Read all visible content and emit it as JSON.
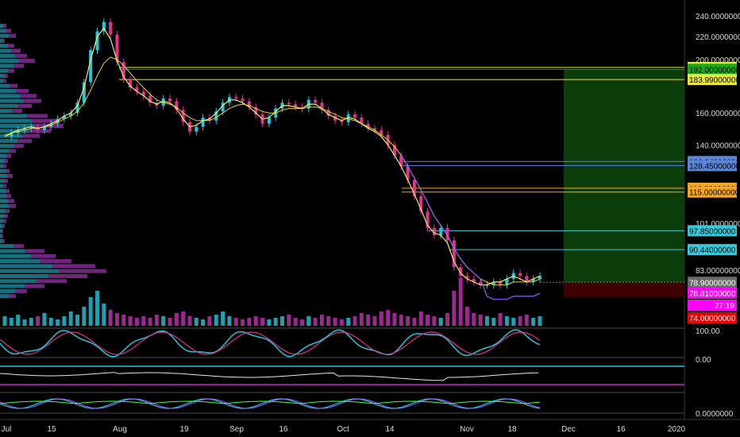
{
  "chart_data": {
    "type": "candlestick",
    "price_axis": {
      "ticks": [
        "240.00000000",
        "220.00000000",
        "200.00000000",
        "160.00000000",
        "140.00000000",
        "101.00000000",
        "83.00000000"
      ],
      "tick_values": [
        240,
        220,
        200,
        160,
        140,
        101,
        83
      ],
      "ylim": [
        74,
        242
      ],
      "log_scale": true
    },
    "time_axis": {
      "labels": [
        "Jul",
        "15",
        "Aug",
        "19",
        "Sep",
        "16",
        "Oct",
        "14",
        "Nov",
        "18",
        "Dec",
        "16",
        "2020"
      ]
    },
    "price_series": {
      "name": "",
      "values": [
        145,
        147,
        149,
        150,
        151,
        149,
        151,
        153,
        156,
        158,
        160,
        167,
        182,
        208,
        225,
        234,
        222,
        198,
        184,
        178,
        175,
        172,
        167,
        165,
        170,
        168,
        162,
        154,
        148,
        151,
        157,
        155,
        161,
        167,
        171,
        170,
        168,
        164,
        159,
        153,
        157,
        163,
        167,
        166,
        164,
        163,
        169,
        167,
        162,
        158,
        155,
        154,
        159,
        157,
        153,
        150,
        149,
        146,
        140,
        134,
        128,
        121,
        113,
        106,
        99,
        96,
        99,
        94,
        84,
        81,
        80,
        79,
        78,
        78,
        79,
        78,
        80,
        82,
        81,
        79,
        80,
        81
      ],
      "ma_fast": [
        145,
        147,
        149,
        150,
        151,
        150,
        151,
        153,
        155,
        158,
        160,
        165,
        178,
        200,
        220,
        228,
        218,
        199,
        186,
        179,
        175,
        172,
        168,
        166,
        168,
        167,
        163,
        156,
        151,
        152,
        155,
        156,
        160,
        165,
        169,
        169,
        167,
        164,
        160,
        156,
        157,
        161,
        165,
        165,
        164,
        163,
        166,
        166,
        163,
        159,
        157,
        155,
        157,
        156,
        153,
        150,
        148,
        145,
        140,
        134,
        128,
        121,
        114,
        107,
        100,
        97,
        96,
        93,
        86,
        82,
        80,
        79,
        78,
        78,
        79,
        79,
        80,
        81,
        80,
        79,
        80,
        81
      ],
      "ma_slow": [
        146,
        147,
        148,
        149,
        150,
        150,
        151,
        152,
        154,
        156,
        158,
        161,
        167,
        176,
        187,
        197,
        202,
        200,
        195,
        189,
        183,
        178,
        173,
        169,
        167,
        166,
        164,
        160,
        157,
        155,
        155,
        155,
        157,
        160,
        163,
        165,
        166,
        165,
        163,
        161,
        160,
        160,
        162,
        163,
        163,
        163,
        164,
        164,
        163,
        161,
        159,
        157,
        156,
        155,
        153,
        151,
        149,
        146,
        143,
        139,
        134,
        128,
        122,
        116,
        110,
        104,
        100,
        96,
        91,
        87,
        84,
        82,
        80,
        79,
        78,
        78,
        78,
        79,
        79,
        79,
        79,
        80
      ]
    },
    "horizontal_levels": [
      {
        "value": 193.5,
        "label": "193.50000000",
        "color": "#e6e63c"
      },
      {
        "value": 192.0,
        "label": "192.00000000",
        "color": "#18a818"
      },
      {
        "value": 183.99,
        "label": "183.99000000",
        "color": "#e6e63c"
      },
      {
        "value": 130.64,
        "label": "130.64000000",
        "color": "#5b86d8"
      },
      {
        "value": 128.45,
        "label": "128.45000000",
        "color": "#5b86d8"
      },
      {
        "value": 116.86,
        "label": "116.86000000",
        "color": "#f5a623"
      },
      {
        "value": 115.0,
        "label": "115.00000000",
        "color": "#f5a623"
      },
      {
        "value": 97.85,
        "label": "97.85000000",
        "color": "#36c8d8"
      },
      {
        "value": 90.44,
        "label": "90.44000000",
        "color": "#36c8d8"
      }
    ],
    "current_price": {
      "value": 78.9,
      "label": "78.90000000"
    },
    "price_tags": [
      {
        "label": "78.81000000",
        "color": "#ff00ff"
      },
      {
        "label": "27:19",
        "color": "#ff00ff"
      },
      {
        "label": "74.00000000",
        "color": "#e60000"
      }
    ],
    "position": {
      "entry": 78.9,
      "target": 192.0,
      "stop": 74.0
    },
    "volume": [
      6,
      5,
      7,
      4,
      5,
      6,
      8,
      5,
      4,
      6,
      9,
      7,
      12,
      18,
      22,
      14,
      10,
      8,
      7,
      6,
      5,
      6,
      5,
      7,
      6,
      5,
      8,
      9,
      6,
      5,
      4,
      6,
      7,
      9,
      6,
      5,
      4,
      5,
      6,
      5,
      4,
      5,
      6,
      7,
      5,
      4,
      6,
      5,
      7,
      6,
      5,
      4,
      5,
      6,
      8,
      7,
      6,
      9,
      10,
      8,
      7,
      6,
      5,
      9,
      7,
      6,
      5,
      8,
      22,
      30,
      12,
      8,
      7,
      6,
      5,
      8,
      6,
      5,
      6,
      7,
      5,
      6
    ],
    "oscillator_panel": {
      "axis_labels": [
        "100.00",
        "0.00"
      ]
    },
    "momentum_panel": {
      "axis_labels": [
        "0.0000000"
      ]
    }
  }
}
